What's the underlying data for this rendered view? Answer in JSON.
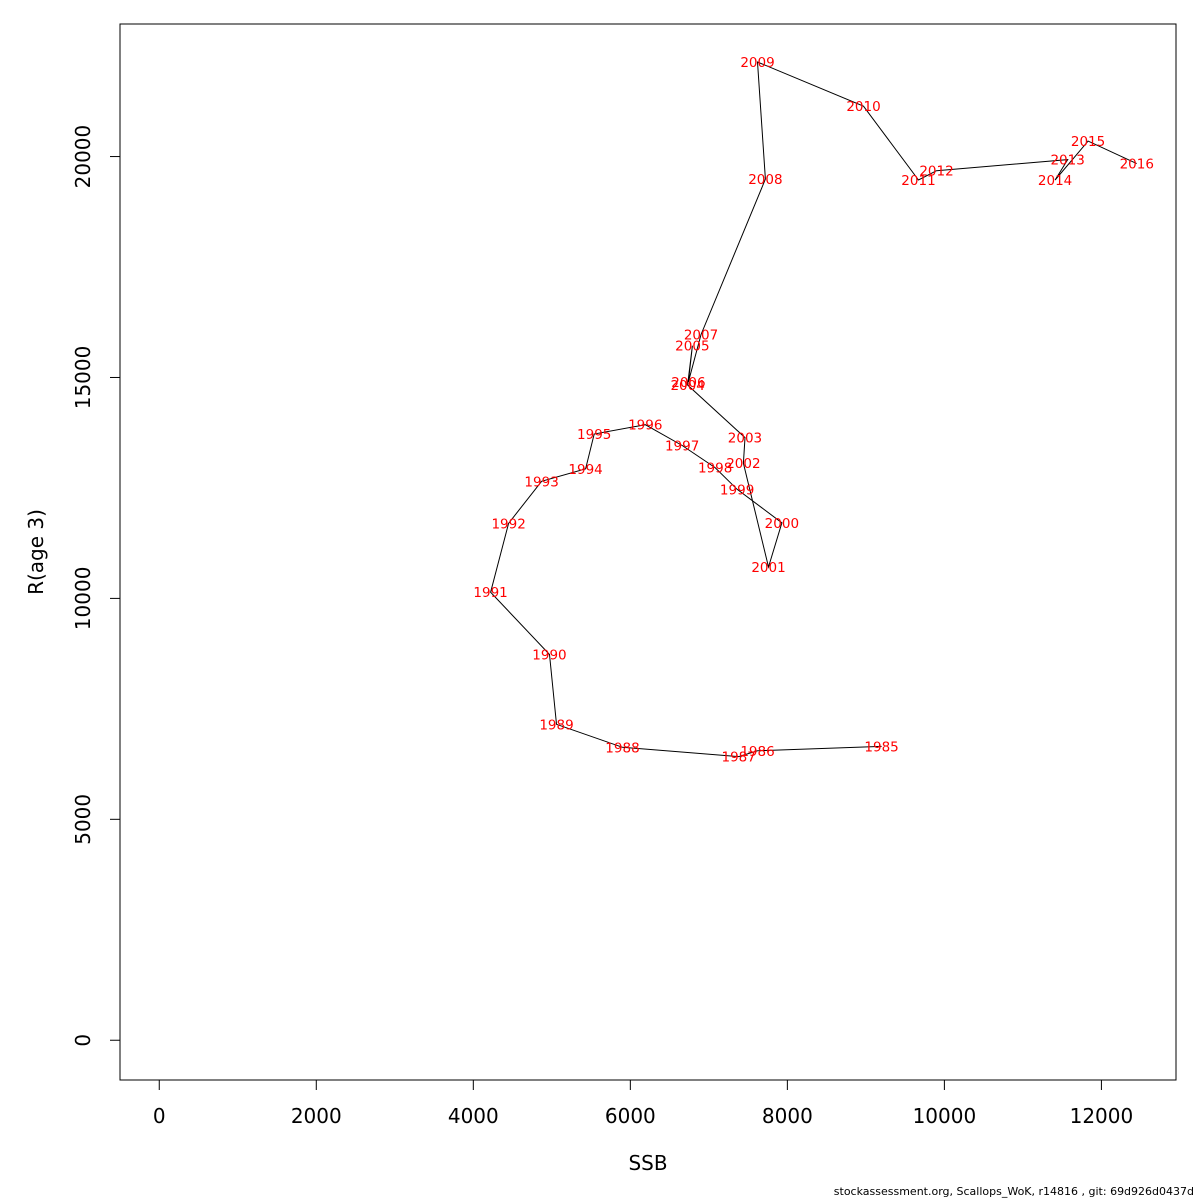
{
  "chart_data": {
    "type": "line",
    "xlabel": "SSB",
    "ylabel": "R(age 3)",
    "xlim": [
      -500,
      12950
    ],
    "ylim": [
      -900,
      23000
    ],
    "x_ticks": [
      0,
      2000,
      4000,
      6000,
      8000,
      10000,
      12000
    ],
    "y_ticks": [
      0,
      5000,
      10000,
      15000,
      20000
    ],
    "points": [
      {
        "year": "1985",
        "ssb": 9200,
        "r": 6650
      },
      {
        "year": "1986",
        "ssb": 7620,
        "r": 6550
      },
      {
        "year": "1987",
        "ssb": 7380,
        "r": 6420
      },
      {
        "year": "1988",
        "ssb": 5900,
        "r": 6630
      },
      {
        "year": "1989",
        "ssb": 5060,
        "r": 7150
      },
      {
        "year": "1990",
        "ssb": 4970,
        "r": 8730
      },
      {
        "year": "1991",
        "ssb": 4220,
        "r": 10140
      },
      {
        "year": "1992",
        "ssb": 4450,
        "r": 11700
      },
      {
        "year": "1993",
        "ssb": 4870,
        "r": 12650
      },
      {
        "year": "1994",
        "ssb": 5430,
        "r": 12930
      },
      {
        "year": "1995",
        "ssb": 5540,
        "r": 13720
      },
      {
        "year": "1996",
        "ssb": 6190,
        "r": 13930
      },
      {
        "year": "1997",
        "ssb": 6660,
        "r": 13460
      },
      {
        "year": "1998",
        "ssb": 7080,
        "r": 12960
      },
      {
        "year": "1999",
        "ssb": 7360,
        "r": 12470
      },
      {
        "year": "2000",
        "ssb": 7930,
        "r": 11710
      },
      {
        "year": "2001",
        "ssb": 7760,
        "r": 10710
      },
      {
        "year": "2002",
        "ssb": 7440,
        "r": 13060
      },
      {
        "year": "2003",
        "ssb": 7460,
        "r": 13640
      },
      {
        "year": "2004",
        "ssb": 6730,
        "r": 14830
      },
      {
        "year": "2005",
        "ssb": 6790,
        "r": 15720
      },
      {
        "year": "2006",
        "ssb": 6740,
        "r": 14900
      },
      {
        "year": "2007",
        "ssb": 6900,
        "r": 15970
      },
      {
        "year": "2008",
        "ssb": 7720,
        "r": 19490
      },
      {
        "year": "2009",
        "ssb": 7620,
        "r": 22140
      },
      {
        "year": "2010",
        "ssb": 8970,
        "r": 21140
      },
      {
        "year": "2011",
        "ssb": 9670,
        "r": 19470
      },
      {
        "year": "2012",
        "ssb": 9900,
        "r": 19680
      },
      {
        "year": "2013",
        "ssb": 11570,
        "r": 19930
      },
      {
        "year": "2014",
        "ssb": 11410,
        "r": 19470
      },
      {
        "year": "2015",
        "ssb": 11830,
        "r": 20350
      },
      {
        "year": "2016",
        "ssb": 12450,
        "r": 19840
      }
    ],
    "line_color": "#000000",
    "label_color": "#ff0000",
    "grid": false
  },
  "footer": {
    "caption": "stockassessment.org, Scallops_WoK, r14816 , git: 69d926d0437d"
  }
}
